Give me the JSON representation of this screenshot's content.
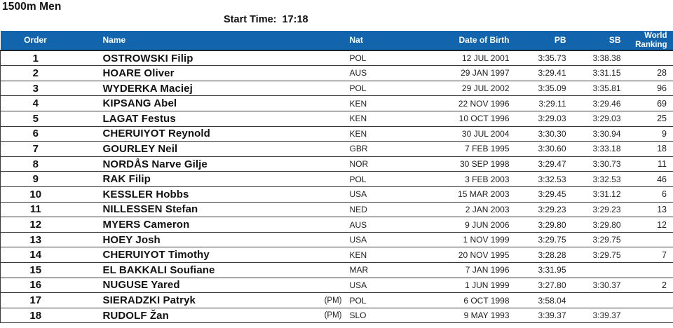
{
  "page": {
    "title": "1500m Men",
    "start_time_label": "Start Time:",
    "start_time_value": "17:18"
  },
  "colors": {
    "header_bg": "#1264ac",
    "header_text": "#ffffff",
    "header_underline": "#1b2430",
    "row_border": "#3a3a3a",
    "text_strong": "#111111",
    "text_small": "#222222",
    "page_bg": "#ffffff"
  },
  "table": {
    "headers": {
      "order": "Order",
      "name": "Name",
      "pm": "",
      "nat": "Nat",
      "dob": "Date of Birth",
      "pb": "PB",
      "sb": "SB",
      "world_ranking": "World Ranking"
    },
    "rows": [
      {
        "order": "1",
        "name": "OSTROWSKI Filip",
        "pm": "",
        "nat": "POL",
        "dob": "12 JUL 2001",
        "pb": "3:35.73",
        "sb": "3:38.38",
        "world_ranking": ""
      },
      {
        "order": "2",
        "name": "HOARE Oliver",
        "pm": "",
        "nat": "AUS",
        "dob": "29 JAN 1997",
        "pb": "3:29.41",
        "sb": "3:31.15",
        "world_ranking": "28"
      },
      {
        "order": "3",
        "name": "WYDERKA Maciej",
        "pm": "",
        "nat": "POL",
        "dob": "29 JUL 2002",
        "pb": "3:35.09",
        "sb": "3:35.81",
        "world_ranking": "96"
      },
      {
        "order": "4",
        "name": "KIPSANG Abel",
        "pm": "",
        "nat": "KEN",
        "dob": "22 NOV 1996",
        "pb": "3:29.11",
        "sb": "3:29.46",
        "world_ranking": "69"
      },
      {
        "order": "5",
        "name": "LAGAT Festus",
        "pm": "",
        "nat": "KEN",
        "dob": "10 OCT 1996",
        "pb": "3:29.03",
        "sb": "3:29.03",
        "world_ranking": "25"
      },
      {
        "order": "6",
        "name": "CHERUIYOT Reynold",
        "pm": "",
        "nat": "KEN",
        "dob": "30 JUL 2004",
        "pb": "3:30.30",
        "sb": "3:30.94",
        "world_ranking": "9"
      },
      {
        "order": "7",
        "name": "GOURLEY Neil",
        "pm": "",
        "nat": "GBR",
        "dob": "7 FEB 1995",
        "pb": "3:30.60",
        "sb": "3:33.18",
        "world_ranking": "18"
      },
      {
        "order": "8",
        "name": "NORDÅS Narve Gilje",
        "pm": "",
        "nat": "NOR",
        "dob": "30 SEP 1998",
        "pb": "3:29.47",
        "sb": "3:30.73",
        "world_ranking": "11"
      },
      {
        "order": "9",
        "name": "RAK Filip",
        "pm": "",
        "nat": "POL",
        "dob": "3 FEB 2003",
        "pb": "3:32.53",
        "sb": "3:32.53",
        "world_ranking": "46"
      },
      {
        "order": "10",
        "name": "KESSLER Hobbs",
        "pm": "",
        "nat": "USA",
        "dob": "15 MAR 2003",
        "pb": "3:29.45",
        "sb": "3:31.12",
        "world_ranking": "6"
      },
      {
        "order": "11",
        "name": "NILLESSEN Stefan",
        "pm": "",
        "nat": "NED",
        "dob": "2 JAN 2003",
        "pb": "3:29.23",
        "sb": "3:29.23",
        "world_ranking": "13"
      },
      {
        "order": "12",
        "name": "MYERS Cameron",
        "pm": "",
        "nat": "AUS",
        "dob": "9 JUN 2006",
        "pb": "3:29.80",
        "sb": "3:29.80",
        "world_ranking": "12"
      },
      {
        "order": "13",
        "name": "HOEY Josh",
        "pm": "",
        "nat": "USA",
        "dob": "1 NOV 1999",
        "pb": "3:29.75",
        "sb": "3:29.75",
        "world_ranking": ""
      },
      {
        "order": "14",
        "name": "CHERUIYOT Timothy",
        "pm": "",
        "nat": "KEN",
        "dob": "20 NOV 1995",
        "pb": "3:28.28",
        "sb": "3:29.75",
        "world_ranking": "7"
      },
      {
        "order": "15",
        "name": "EL BAKKALI Soufiane",
        "pm": "",
        "nat": "MAR",
        "dob": "7 JAN 1996",
        "pb": "3:31.95",
        "sb": "",
        "world_ranking": ""
      },
      {
        "order": "16",
        "name": "NUGUSE Yared",
        "pm": "",
        "nat": "USA",
        "dob": "1 JUN 1999",
        "pb": "3:27.80",
        "sb": "3:30.37",
        "world_ranking": "2"
      },
      {
        "order": "17",
        "name": "SIERADZKI Patryk",
        "pm": "(PM)",
        "nat": "POL",
        "dob": "6 OCT 1998",
        "pb": "3:58.04",
        "sb": "",
        "world_ranking": ""
      },
      {
        "order": "18",
        "name": "RUDOLF Žan",
        "pm": "(PM)",
        "nat": "SLO",
        "dob": "9 MAY 1993",
        "pb": "3:39.37",
        "sb": "3:39.37",
        "world_ranking": ""
      }
    ]
  }
}
